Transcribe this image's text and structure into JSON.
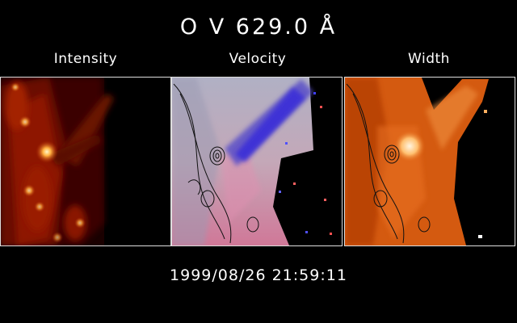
{
  "title": "O V 629.0 Å",
  "panels": [
    {
      "label": "Intensity"
    },
    {
      "label": "Velocity"
    },
    {
      "label": "Width"
    }
  ],
  "timestamp": "1999/08/26 21:59:11"
}
